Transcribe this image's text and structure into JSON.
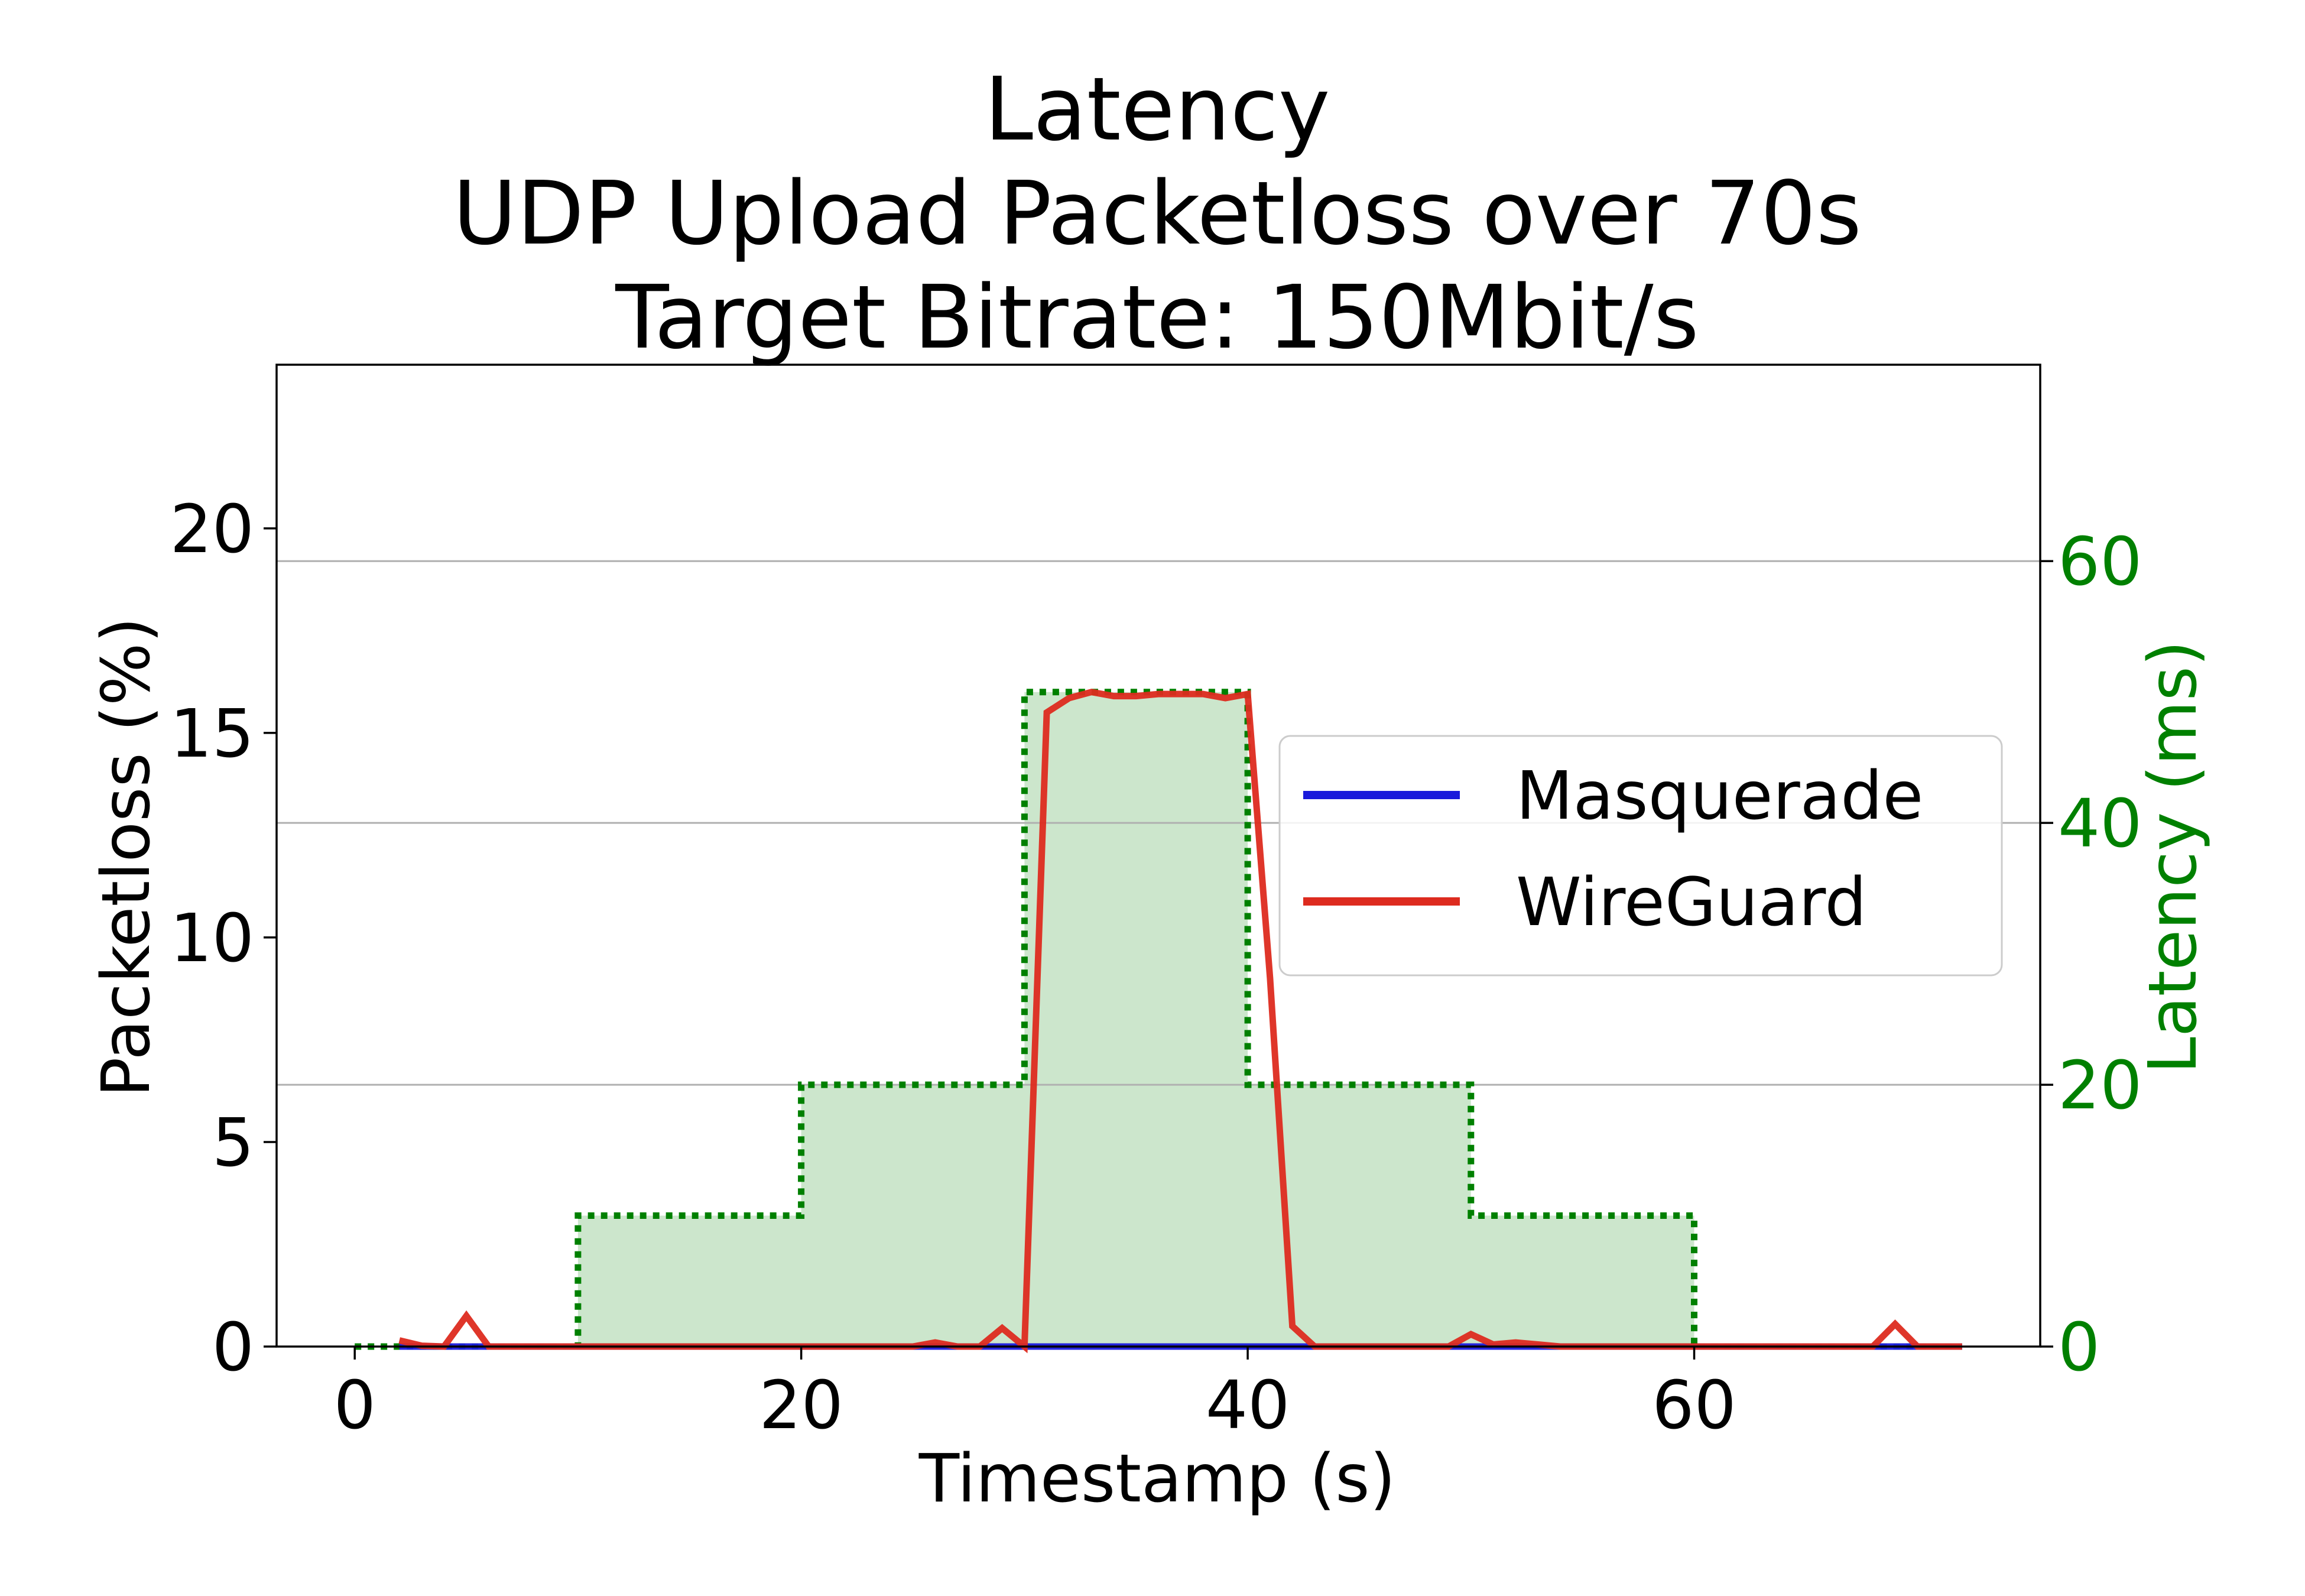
{
  "chart_data": {
    "type": "line",
    "title_lines": [
      "Latency",
      "UDP Upload Packetloss over 70s",
      "Target Bitrate: 150Mbit/s"
    ],
    "xlabel": "Timestamp (s)",
    "ylabel": "Packetloss (%)",
    "y2label": "Latency (ms)",
    "xlim": [
      -3.5,
      75.5
    ],
    "ylim": [
      0,
      24
    ],
    "y2lim": [
      0,
      75
    ],
    "xticks": [
      "0",
      "20",
      "40",
      "60"
    ],
    "xtick_values": [
      0,
      20,
      40,
      60
    ],
    "yticks": [
      "0",
      "5",
      "10",
      "15",
      "20"
    ],
    "ytick_values": [
      0,
      5,
      10,
      15,
      20
    ],
    "y2ticks": [
      "0",
      "20",
      "40",
      "60"
    ],
    "y2tick_values": [
      0,
      20,
      40,
      60
    ],
    "grid": "horizontal (right axis)",
    "legend_position": "center-right",
    "series": [
      {
        "name": "Masquerade",
        "axis": "left",
        "color": "#1a1adb",
        "points": [
          [
            2,
            0
          ],
          [
            3,
            0
          ],
          [
            4,
            0
          ],
          [
            5,
            0
          ],
          [
            6,
            0
          ],
          [
            7,
            0
          ],
          [
            8,
            0
          ],
          [
            9,
            0
          ],
          [
            10,
            0
          ],
          [
            15,
            0
          ],
          [
            20,
            0
          ],
          [
            25,
            0
          ],
          [
            30,
            0
          ],
          [
            35,
            0
          ],
          [
            40,
            0
          ],
          [
            45,
            0
          ],
          [
            50,
            0
          ],
          [
            55,
            0
          ],
          [
            60,
            0
          ],
          [
            65,
            0
          ],
          [
            70,
            0
          ],
          [
            72,
            0
          ]
        ]
      },
      {
        "name": "WireGuard",
        "axis": "left",
        "color": "#dd2b1f",
        "points": [
          [
            2,
            0.15
          ],
          [
            3,
            0.02
          ],
          [
            4,
            0.0
          ],
          [
            5,
            0.75
          ],
          [
            6,
            0.0
          ],
          [
            7,
            0
          ],
          [
            8,
            0
          ],
          [
            9,
            0
          ],
          [
            10,
            0
          ],
          [
            12,
            0
          ],
          [
            14,
            0
          ],
          [
            16,
            0
          ],
          [
            18,
            0
          ],
          [
            20,
            0
          ],
          [
            22,
            0
          ],
          [
            24,
            0
          ],
          [
            25,
            0
          ],
          [
            26,
            0.1
          ],
          [
            27,
            0.0
          ],
          [
            28,
            0.0
          ],
          [
            29,
            0.45
          ],
          [
            30,
            0.0
          ],
          [
            31,
            15.5
          ],
          [
            32,
            15.85
          ],
          [
            33,
            16.0
          ],
          [
            34,
            15.9
          ],
          [
            35,
            15.9
          ],
          [
            36,
            15.95
          ],
          [
            37,
            15.95
          ],
          [
            38,
            15.95
          ],
          [
            39,
            15.85
          ],
          [
            40,
            15.95
          ],
          [
            41,
            9.0
          ],
          [
            42,
            0.5
          ],
          [
            43,
            0.0
          ],
          [
            44,
            0
          ],
          [
            46,
            0
          ],
          [
            48,
            0
          ],
          [
            49,
            0.0
          ],
          [
            50,
            0.3
          ],
          [
            51,
            0.05
          ],
          [
            52,
            0.1
          ],
          [
            53,
            0.05
          ],
          [
            54,
            0
          ],
          [
            56,
            0
          ],
          [
            58,
            0
          ],
          [
            60,
            0
          ],
          [
            62,
            0
          ],
          [
            64,
            0
          ],
          [
            66,
            0
          ],
          [
            68,
            0.0
          ],
          [
            69,
            0.55
          ],
          [
            70,
            0.0
          ],
          [
            71,
            0
          ],
          [
            72,
            0
          ]
        ]
      },
      {
        "name": "Latency",
        "axis": "right",
        "color": "#008000",
        "style": "dotted-step-filled",
        "steps": [
          [
            0,
            0
          ],
          [
            10,
            10
          ],
          [
            20,
            20
          ],
          [
            30,
            50
          ],
          [
            40,
            20
          ],
          [
            50,
            10
          ],
          [
            60,
            0
          ],
          [
            72,
            0
          ]
        ]
      }
    ]
  }
}
